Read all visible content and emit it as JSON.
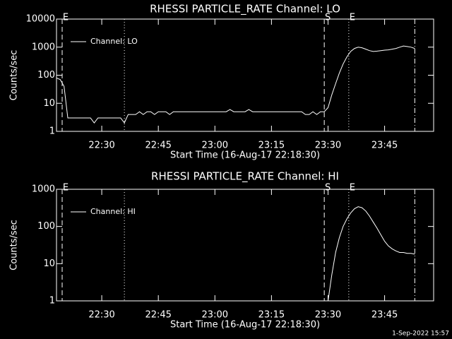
{
  "chart_data": [
    {
      "type": "line",
      "title": "RHESSI PARTICLE_RATE Channel: LO",
      "xlabel": "Start Time (16-Aug-17 22:18:30)",
      "ylabel": "Counts/sec",
      "log_y": true,
      "legend": "upper left",
      "xlim": [
        "22:18",
        "23:58"
      ],
      "xticks": [
        "22:30",
        "22:45",
        "23:00",
        "23:15",
        "23:30",
        "23:45"
      ],
      "ylim": [
        1,
        10000
      ],
      "yticks": [
        1,
        10,
        100,
        1000,
        10000
      ],
      "markers": [
        {
          "x": "22:19:30",
          "style": "dashed",
          "label": "E"
        },
        {
          "x": "22:36",
          "style": "dotted"
        },
        {
          "x": "23:29",
          "style": "dashed",
          "label": "S"
        },
        {
          "x": "23:35:30",
          "style": "dotted",
          "label": "E"
        },
        {
          "x": "23:53",
          "style": "dashdot"
        }
      ],
      "x": [
        "22:18",
        "22:19",
        "22:20",
        "22:21",
        "22:22",
        "22:23",
        "22:24",
        "22:25",
        "22:26",
        "22:27",
        "22:28",
        "22:29",
        "22:30",
        "22:31",
        "22:32",
        "22:33",
        "22:34",
        "22:35",
        "22:36",
        "22:37",
        "22:38",
        "22:39",
        "22:40",
        "22:41",
        "22:42",
        "22:43",
        "22:44",
        "22:45",
        "22:46",
        "22:47",
        "22:48",
        "22:49",
        "22:50",
        "22:51",
        "22:52",
        "22:53",
        "22:54",
        "22:55",
        "22:56",
        "22:57",
        "22:58",
        "22:59",
        "23:00",
        "23:01",
        "23:02",
        "23:03",
        "23:04",
        "23:05",
        "23:06",
        "23:07",
        "23:08",
        "23:09",
        "23:10",
        "23:11",
        "23:12",
        "23:13",
        "23:14",
        "23:15",
        "23:16",
        "23:17",
        "23:18",
        "23:19",
        "23:20",
        "23:21",
        "23:22",
        "23:23",
        "23:24",
        "23:25",
        "23:26",
        "23:27",
        "23:28",
        "23:29",
        "23:30",
        "23:31",
        "23:32",
        "23:33",
        "23:34",
        "23:35",
        "23:36",
        "23:37",
        "23:38",
        "23:39",
        "23:40",
        "23:41",
        "23:42",
        "23:43",
        "23:44",
        "23:45",
        "23:46",
        "23:47",
        "23:48",
        "23:49",
        "23:50",
        "23:51",
        "23:52",
        "23:53"
      ],
      "series": [
        {
          "name": "Channel: LO",
          "color": "#ffffff",
          "values": [
            80,
            70,
            40,
            3,
            3,
            3,
            3,
            3,
            3,
            3,
            2,
            3,
            3,
            3,
            3,
            3,
            3,
            3,
            2,
            4,
            4,
            4,
            5,
            4,
            5,
            5,
            4,
            5,
            5,
            5,
            4,
            5,
            5,
            5,
            5,
            5,
            5,
            5,
            5,
            5,
            5,
            5,
            5,
            5,
            5,
            5,
            6,
            5,
            5,
            5,
            5,
            6,
            5,
            5,
            5,
            5,
            5,
            5,
            5,
            5,
            5,
            5,
            5,
            5,
            5,
            5,
            4,
            4,
            5,
            4,
            5,
            5,
            7,
            20,
            50,
            120,
            250,
            450,
            700,
            900,
            1000,
            950,
            850,
            750,
            700,
            720,
            750,
            780,
            800,
            850,
            900,
            1000,
            1100,
            1050,
            1000,
            900
          ]
        }
      ]
    },
    {
      "type": "line",
      "title": "RHESSI PARTICLE_RATE Channel: HI",
      "xlabel": "Start Time (16-Aug-17 22:18:30)",
      "ylabel": "Counts/sec",
      "log_y": true,
      "legend": "upper left",
      "xlim": [
        "22:18",
        "23:58"
      ],
      "xticks": [
        "22:30",
        "22:45",
        "23:00",
        "23:15",
        "23:30",
        "23:45"
      ],
      "ylim": [
        1,
        1000
      ],
      "yticks": [
        1,
        10,
        100,
        1000
      ],
      "markers": [
        {
          "x": "22:19:30",
          "style": "dashed",
          "label": "E"
        },
        {
          "x": "22:36",
          "style": "dotted"
        },
        {
          "x": "23:29",
          "style": "dashed",
          "label": "S"
        },
        {
          "x": "23:35:30",
          "style": "dotted",
          "label": "E"
        },
        {
          "x": "23:53",
          "style": "dashdot"
        }
      ],
      "x": [
        "23:30",
        "23:31",
        "23:32",
        "23:33",
        "23:34",
        "23:35",
        "23:36",
        "23:37",
        "23:38",
        "23:39",
        "23:40",
        "23:41",
        "23:42",
        "23:43",
        "23:44",
        "23:45",
        "23:46",
        "23:47",
        "23:48",
        "23:49",
        "23:50",
        "23:51",
        "23:52",
        "23:53"
      ],
      "series": [
        {
          "name": "Channel: HI",
          "color": "#ffffff",
          "values": [
            1,
            5,
            20,
            50,
            100,
            160,
            230,
            300,
            340,
            320,
            260,
            190,
            130,
            90,
            60,
            40,
            30,
            25,
            22,
            20,
            20,
            19,
            19,
            18
          ]
        }
      ]
    }
  ],
  "footer": "1-Sep-2022 15:57"
}
